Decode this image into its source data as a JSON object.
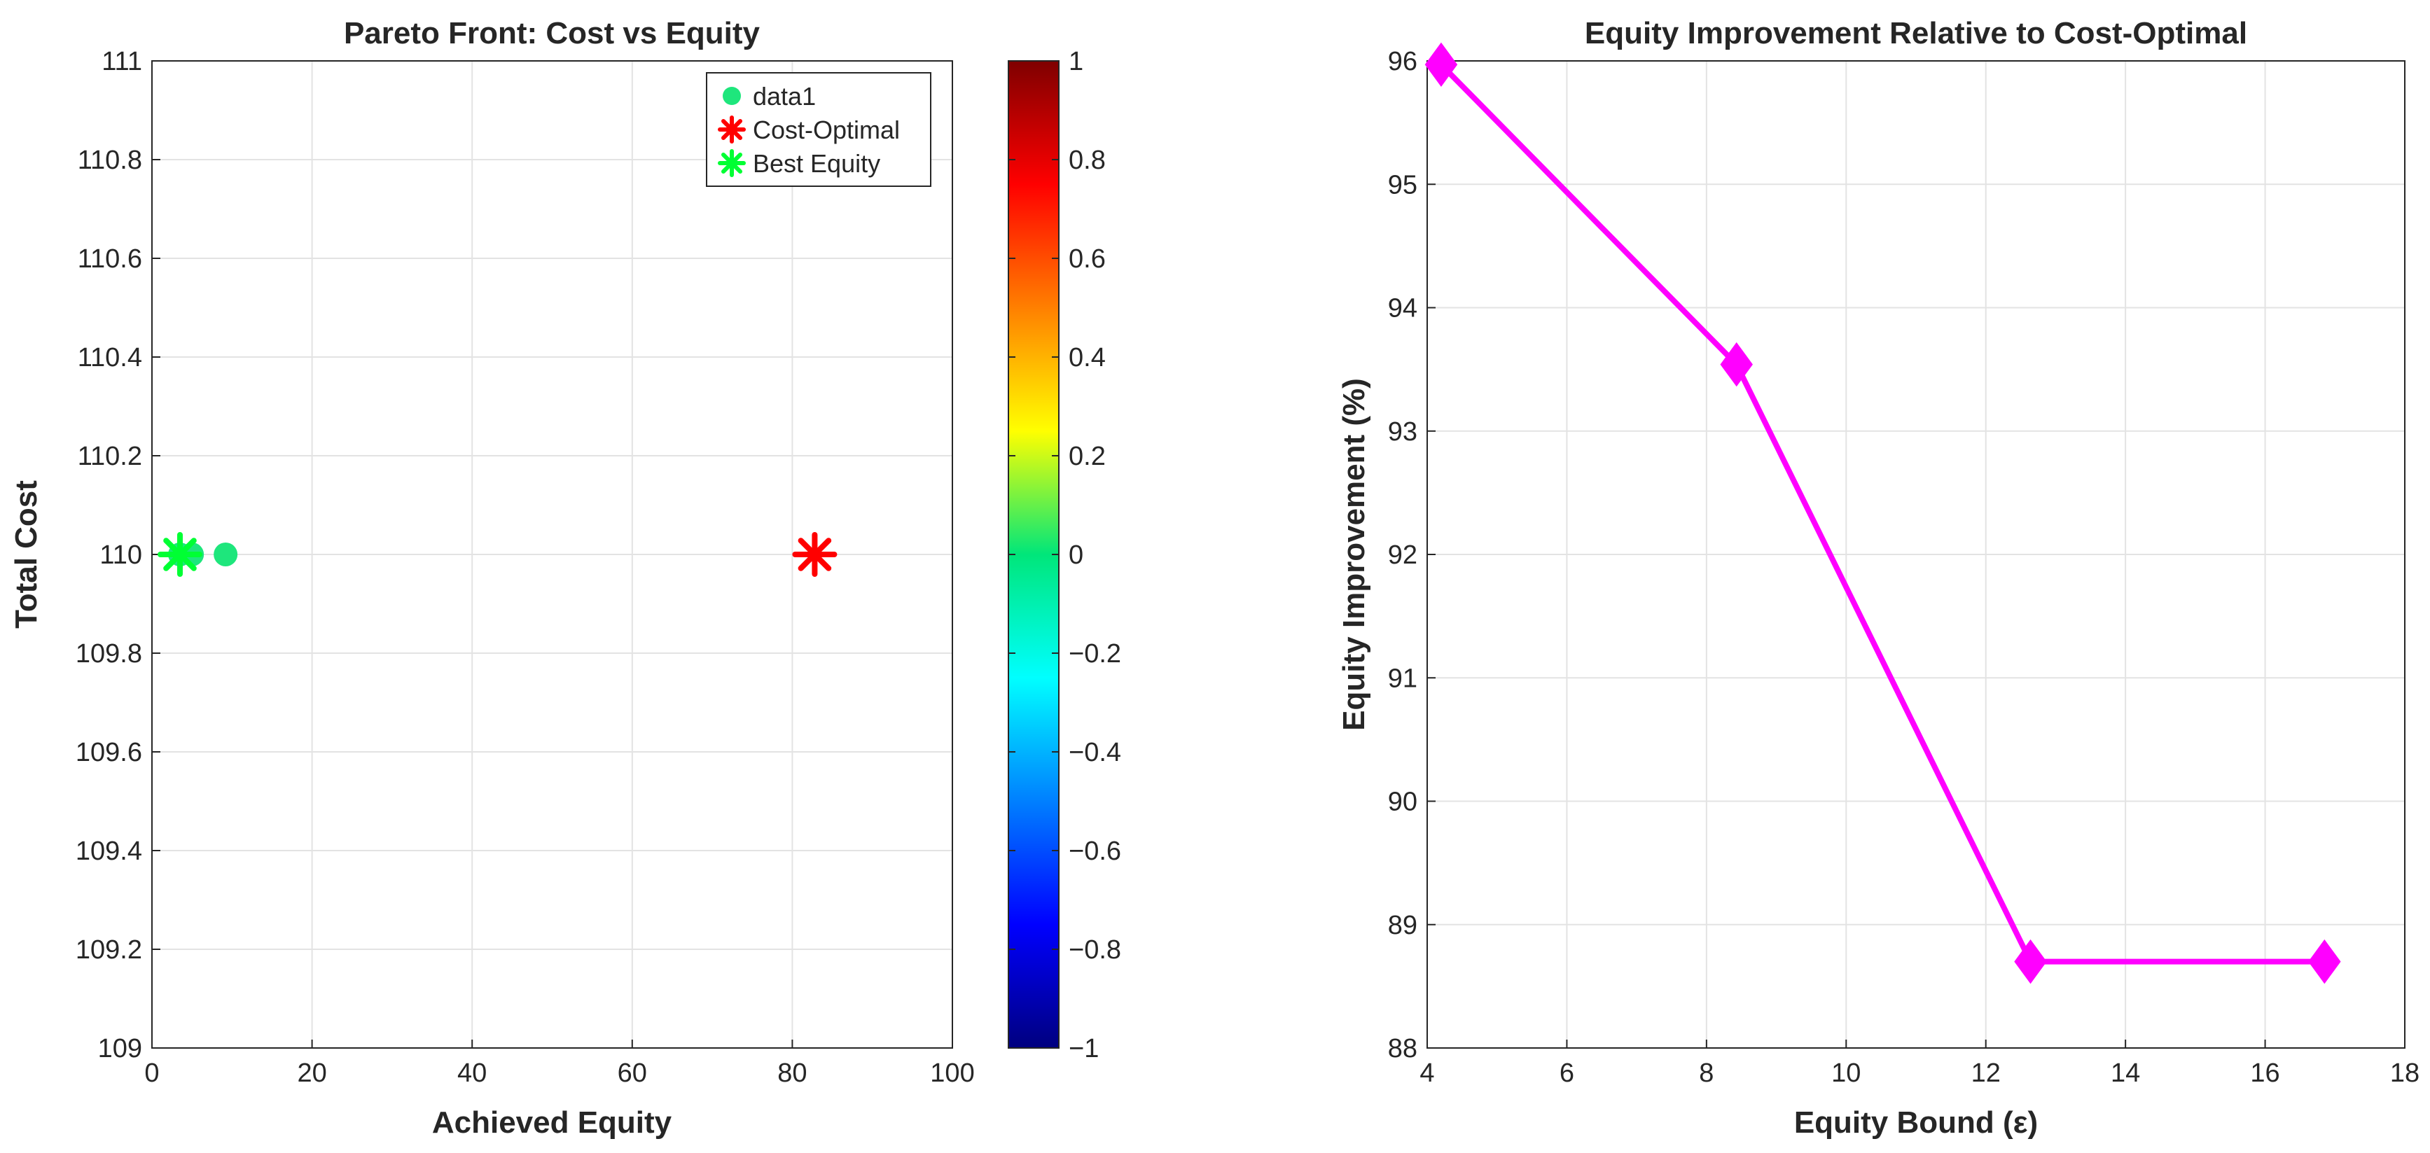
{
  "chart_data": [
    {
      "type": "scatter",
      "title": "Pareto Front: Cost vs Equity",
      "xlabel": "Achieved Equity",
      "ylabel": "Total Cost",
      "xlim": [
        0,
        100
      ],
      "ylim": [
        109,
        111
      ],
      "xticks": [
        "0",
        "20",
        "40",
        "60",
        "80",
        "100"
      ],
      "yticks": [
        "109",
        "109.2",
        "109.4",
        "109.6",
        "109.8",
        "110",
        "110.2",
        "110.4",
        "110.6",
        "110.8",
        "111"
      ],
      "grid": true,
      "legend_position": "top-right",
      "series": [
        {
          "name": "data1",
          "marker": "circle",
          "color": "#1ee67c",
          "x": [
            3.5,
            5.0,
            9.2
          ],
          "y": [
            110,
            110,
            110
          ]
        },
        {
          "name": "Cost-Optimal",
          "marker": "asterisk",
          "color": "#ff0000",
          "x": [
            82.8
          ],
          "y": [
            110
          ]
        },
        {
          "name": "Best Equity",
          "marker": "asterisk",
          "color": "#00ff33",
          "x": [
            3.5
          ],
          "y": [
            110
          ]
        }
      ],
      "colorbar": {
        "colormap": "jet",
        "limits": [
          -1,
          1
        ],
        "ticks": [
          "1",
          "0.8",
          "0.6",
          "0.4",
          "0.2",
          "0",
          "−0.2",
          "−0.4",
          "−0.6",
          "−0.8",
          "−1"
        ]
      }
    },
    {
      "type": "line",
      "title": "Equity Improvement Relative to Cost-Optimal",
      "xlabel": "Equity Bound (ε)",
      "ylabel": "Equity Improvement (%)",
      "xlim": [
        4,
        18
      ],
      "ylim": [
        88,
        96
      ],
      "xticks": [
        "4",
        "6",
        "8",
        "10",
        "12",
        "14",
        "16",
        "18"
      ],
      "yticks": [
        "88",
        "89",
        "90",
        "91",
        "92",
        "93",
        "94",
        "95",
        "96"
      ],
      "grid": true,
      "series": [
        {
          "marker": "diamond",
          "color": "#ff00ff",
          "x": [
            4.2,
            8.43,
            12.64,
            16.85
          ],
          "y": [
            95.97,
            93.54,
            88.7,
            88.7
          ]
        }
      ]
    }
  ]
}
